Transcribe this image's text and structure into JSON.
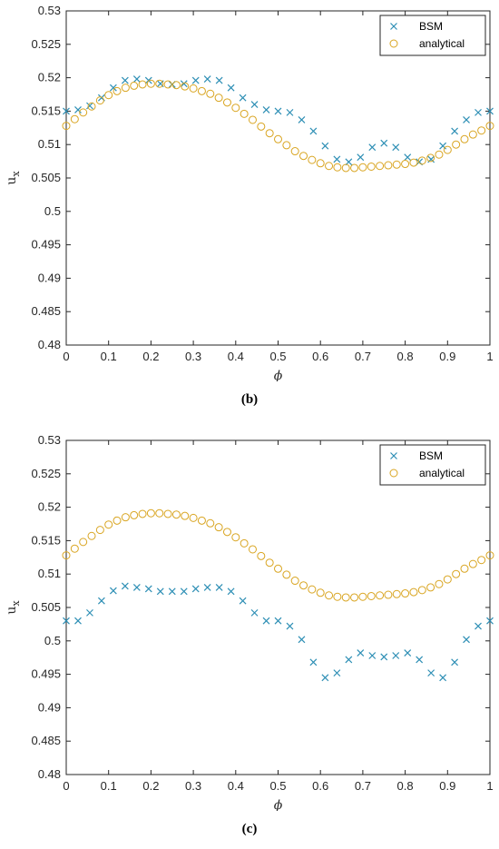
{
  "chart_data": [
    {
      "type": "scatter",
      "caption": "(b)",
      "ylabel": "u_x",
      "xlabel": "ϕ",
      "xlim": [
        0,
        1
      ],
      "ylim": [
        0.48,
        0.53
      ],
      "xticks": [
        "0",
        "0.1",
        "0.2",
        "0.3",
        "0.4",
        "0.5",
        "0.6",
        "0.7",
        "0.8",
        "0.9",
        "1"
      ],
      "yticks": [
        "0.48",
        "0.485",
        "0.49",
        "0.495",
        "0.5",
        "0.505",
        "0.51",
        "0.515",
        "0.52",
        "0.525",
        "0.53"
      ],
      "grid": false,
      "legend_position": "top-right",
      "series": [
        {
          "name": "BSM",
          "marker": "x",
          "color": "#2e8fb5",
          "x": [
            0,
            0.0278,
            0.0556,
            0.0833,
            0.1111,
            0.1389,
            0.1667,
            0.1944,
            0.2222,
            0.25,
            0.2778,
            0.3056,
            0.3333,
            0.3611,
            0.3889,
            0.4167,
            0.4444,
            0.4722,
            0.5,
            0.5278,
            0.5556,
            0.5833,
            0.6111,
            0.6389,
            0.6667,
            0.6944,
            0.7222,
            0.75,
            0.7778,
            0.8056,
            0.8333,
            0.8611,
            0.8889,
            0.9167,
            0.9444,
            0.9722,
            1
          ],
          "y": [
            0.515,
            0.5152,
            0.5158,
            0.517,
            0.5185,
            0.5196,
            0.5198,
            0.5196,
            0.5191,
            0.519,
            0.5191,
            0.5196,
            0.5198,
            0.5196,
            0.5185,
            0.517,
            0.516,
            0.5152,
            0.515,
            0.5148,
            0.5137,
            0.512,
            0.5098,
            0.5078,
            0.5074,
            0.5081,
            0.5096,
            0.5102,
            0.5096,
            0.5081,
            0.5074,
            0.5078,
            0.5098,
            0.512,
            0.5137,
            0.5148,
            0.515
          ]
        },
        {
          "name": "analytical",
          "marker": "o",
          "color": "#d9a521",
          "x": [
            0,
            0.02,
            0.04,
            0.06,
            0.08,
            0.1,
            0.12,
            0.14,
            0.16,
            0.18,
            0.2,
            0.22,
            0.24,
            0.26,
            0.28,
            0.3,
            0.32,
            0.34,
            0.36,
            0.38,
            0.4,
            0.42,
            0.44,
            0.46,
            0.48,
            0.5,
            0.52,
            0.54,
            0.56,
            0.58,
            0.6,
            0.62,
            0.64,
            0.66,
            0.68,
            0.7,
            0.72,
            0.74,
            0.76,
            0.78,
            0.8,
            0.82,
            0.84,
            0.86,
            0.88,
            0.9,
            0.92,
            0.94,
            0.96,
            0.98,
            1
          ],
          "y": [
            0.5128,
            0.5138,
            0.5148,
            0.5157,
            0.5166,
            0.5174,
            0.518,
            0.5185,
            0.5188,
            0.519,
            0.5191,
            0.5191,
            0.519,
            0.5189,
            0.5187,
            0.5184,
            0.518,
            0.5176,
            0.517,
            0.5163,
            0.5155,
            0.5146,
            0.5137,
            0.5127,
            0.5117,
            0.5108,
            0.5099,
            0.509,
            0.5083,
            0.5077,
            0.5072,
            0.5068,
            0.5066,
            0.5065,
            0.5065,
            0.5066,
            0.5067,
            0.5068,
            0.5069,
            0.507,
            0.5071,
            0.5073,
            0.5076,
            0.508,
            0.5085,
            0.5092,
            0.51,
            0.5108,
            0.5115,
            0.5121,
            0.5128
          ]
        }
      ]
    },
    {
      "type": "scatter",
      "caption": "(c)",
      "ylabel": "u_x",
      "xlabel": "ϕ",
      "xlim": [
        0,
        1
      ],
      "ylim": [
        0.48,
        0.53
      ],
      "xticks": [
        "0",
        "0.1",
        "0.2",
        "0.3",
        "0.4",
        "0.5",
        "0.6",
        "0.7",
        "0.8",
        "0.9",
        "1"
      ],
      "yticks": [
        "0.48",
        "0.485",
        "0.49",
        "0.495",
        "0.5",
        "0.505",
        "0.51",
        "0.515",
        "0.52",
        "0.525",
        "0.53"
      ],
      "grid": false,
      "legend_position": "top-right",
      "series": [
        {
          "name": "BSM",
          "marker": "x",
          "color": "#2e8fb5",
          "x": [
            0,
            0.0278,
            0.0556,
            0.0833,
            0.1111,
            0.1389,
            0.1667,
            0.1944,
            0.2222,
            0.25,
            0.2778,
            0.3056,
            0.3333,
            0.3611,
            0.3889,
            0.4167,
            0.4444,
            0.4722,
            0.5,
            0.5278,
            0.5556,
            0.5833,
            0.6111,
            0.6389,
            0.6667,
            0.6944,
            0.7222,
            0.75,
            0.7778,
            0.8056,
            0.8333,
            0.8611,
            0.8889,
            0.9167,
            0.9444,
            0.9722,
            1
          ],
          "y": [
            0.503,
            0.503,
            0.5042,
            0.506,
            0.5075,
            0.5082,
            0.508,
            0.5078,
            0.5074,
            0.5074,
            0.5074,
            0.5078,
            0.508,
            0.508,
            0.5074,
            0.506,
            0.5042,
            0.503,
            0.503,
            0.5022,
            0.5002,
            0.4968,
            0.4945,
            0.4952,
            0.4972,
            0.4982,
            0.4978,
            0.4976,
            0.4978,
            0.4982,
            0.4972,
            0.4952,
            0.4945,
            0.4968,
            0.5002,
            0.5022,
            0.503
          ]
        },
        {
          "name": "analytical",
          "marker": "o",
          "color": "#d9a521",
          "x": [
            0,
            0.02,
            0.04,
            0.06,
            0.08,
            0.1,
            0.12,
            0.14,
            0.16,
            0.18,
            0.2,
            0.22,
            0.24,
            0.26,
            0.28,
            0.3,
            0.32,
            0.34,
            0.36,
            0.38,
            0.4,
            0.42,
            0.44,
            0.46,
            0.48,
            0.5,
            0.52,
            0.54,
            0.56,
            0.58,
            0.6,
            0.62,
            0.64,
            0.66,
            0.68,
            0.7,
            0.72,
            0.74,
            0.76,
            0.78,
            0.8,
            0.82,
            0.84,
            0.86,
            0.88,
            0.9,
            0.92,
            0.94,
            0.96,
            0.98,
            1
          ],
          "y": [
            0.5128,
            0.5138,
            0.5148,
            0.5157,
            0.5166,
            0.5174,
            0.518,
            0.5185,
            0.5188,
            0.519,
            0.5191,
            0.5191,
            0.519,
            0.5189,
            0.5187,
            0.5184,
            0.518,
            0.5176,
            0.517,
            0.5163,
            0.5155,
            0.5146,
            0.5137,
            0.5127,
            0.5117,
            0.5108,
            0.5099,
            0.509,
            0.5083,
            0.5077,
            0.5072,
            0.5068,
            0.5066,
            0.5065,
            0.5065,
            0.5066,
            0.5067,
            0.5068,
            0.5069,
            0.507,
            0.5071,
            0.5073,
            0.5076,
            0.508,
            0.5085,
            0.5092,
            0.51,
            0.5108,
            0.5115,
            0.5121,
            0.5128
          ]
        }
      ]
    }
  ]
}
